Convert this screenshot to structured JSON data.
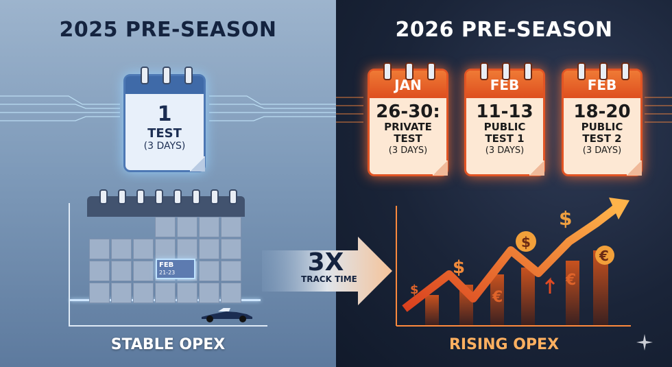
{
  "left": {
    "title": "2025 PRE-SEASON",
    "calendar": {
      "number": "1",
      "label": "TEST",
      "sub": "(3 DAYS)"
    },
    "highlight": {
      "month": "FEB",
      "dates": "21-23"
    },
    "bottom_label": "STABLE OPEX"
  },
  "right": {
    "title": "2026 PRE-SEASON",
    "calendars": [
      {
        "month": "JAN",
        "dates": "26-30:",
        "line1": "PRIVATE",
        "line2": "TEST",
        "sub": "(3 DAYS)"
      },
      {
        "month": "FEB",
        "dates": "11-13",
        "line1": "PUBLIC",
        "line2": "TEST 1",
        "sub": "(3 DAYS)"
      },
      {
        "month": "FEB",
        "dates": "18-20",
        "line1": "PUBLIC",
        "line2": "TEST 2",
        "sub": "(3 DAYS)"
      }
    ],
    "bottom_label": "RISING OPEX"
  },
  "arrow": {
    "multiplier": "3X",
    "label": "TRACK TIME"
  },
  "icons": {
    "dollar": "$",
    "euro": "€"
  },
  "colors": {
    "accent_orange": "#e15424",
    "accent_blue": "#4d78b4",
    "dark_navy": "#14233f"
  }
}
